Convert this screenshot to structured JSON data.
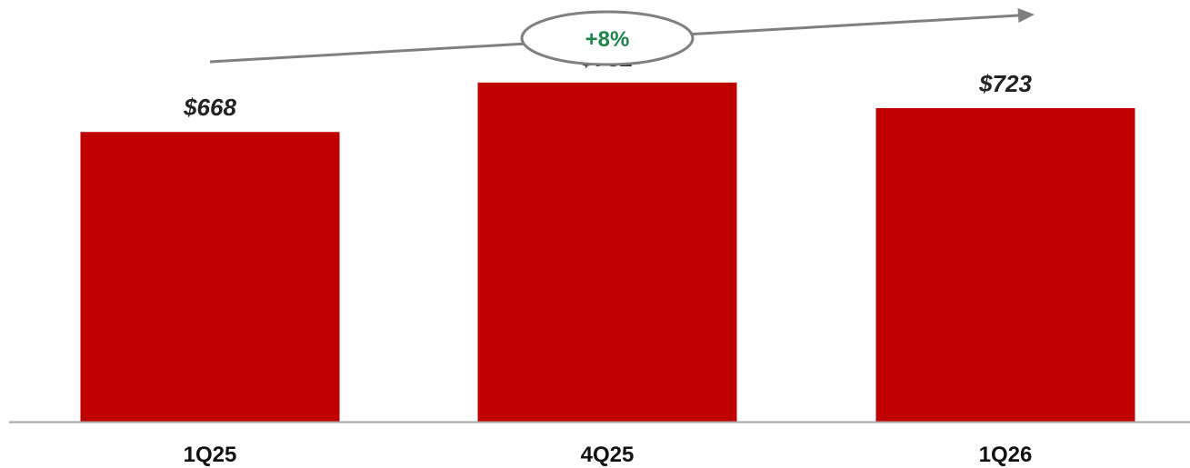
{
  "chart_data": {
    "type": "bar",
    "categories": [
      "1Q25",
      "4Q25",
      "1Q26"
    ],
    "values": [
      668,
      782,
      723
    ],
    "value_labels": [
      "$668",
      "$782",
      "$723"
    ],
    "title": "",
    "xlabel": "",
    "ylabel": "",
    "ylim": [
      0,
      860
    ],
    "grid": false,
    "legend": "none",
    "bar_color": "#C00000",
    "annotation": {
      "text": "+8%",
      "color": "#1E8449",
      "arrow_color": "#7F7F7F"
    },
    "axis_color": "#A6A6A6"
  }
}
